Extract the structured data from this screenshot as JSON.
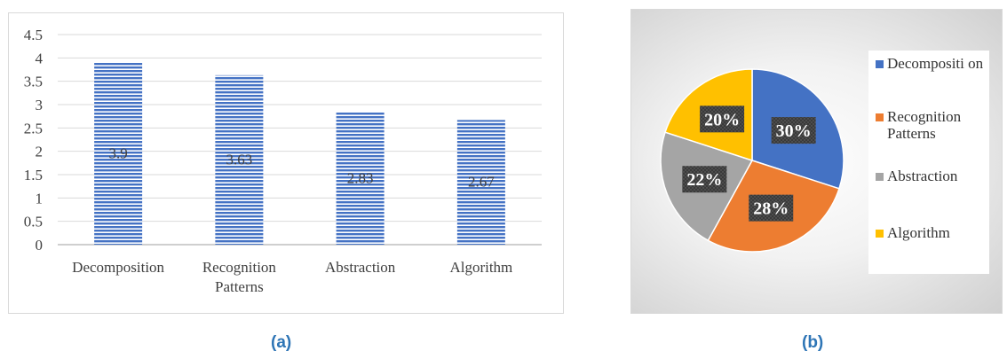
{
  "chart_data": [
    {
      "type": "bar",
      "categories": [
        "Decomposition",
        "Recognition Patterns",
        "Abstraction",
        "Algorithm"
      ],
      "values": [
        3.9,
        3.63,
        2.83,
        2.67
      ],
      "data_labels": [
        "3.9",
        "3.63",
        "2.83",
        "2.67"
      ],
      "yticks": [
        "0",
        "0.5",
        "1",
        "1.5",
        "2",
        "2.5",
        "3",
        "3.5",
        "4",
        "4.5"
      ],
      "ylim": [
        0,
        4.5
      ],
      "grid": true,
      "bar_color": "#4472c4",
      "bar_pattern": "horizontal-stripes"
    },
    {
      "type": "pie",
      "labels": [
        "Decomposition",
        "Recognition Patterns",
        "Abstraction",
        "Algorithm"
      ],
      "legend_labels": [
        "Decompositi on",
        "Recognition Patterns",
        "Abstraction",
        "Algorithm"
      ],
      "values": [
        30,
        28,
        22,
        20
      ],
      "data_labels": [
        "30%",
        "28%",
        "22%",
        "20%"
      ],
      "colors": [
        "#4472c4",
        "#ed7d31",
        "#a5a5a5",
        "#ffc000"
      ],
      "legend_position": "right"
    }
  ],
  "panel_labels": [
    "(a)",
    "(b)"
  ]
}
